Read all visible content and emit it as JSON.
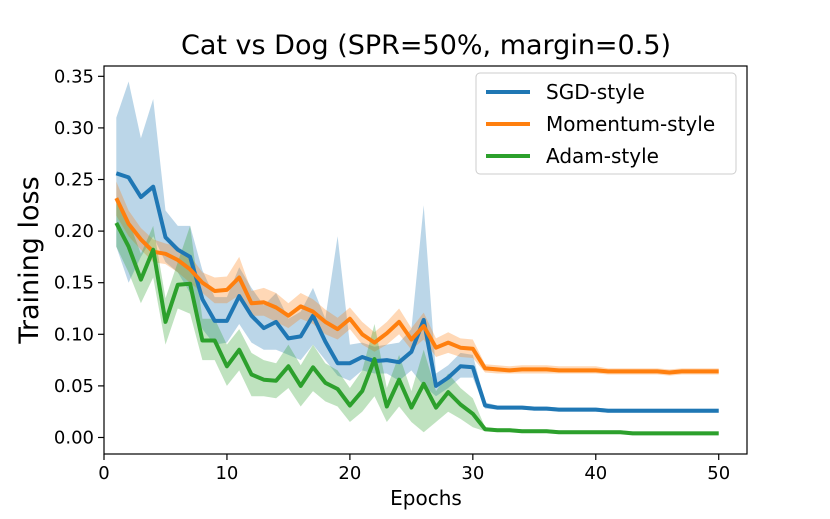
{
  "chart_data": {
    "type": "line",
    "title": "Cat vs Dog (SPR=50%, margin=0.5)",
    "xlabel": "Epochs",
    "ylabel": "Training loss",
    "xlim": [
      0,
      52.3
    ],
    "ylim": [
      -0.016,
      0.36
    ],
    "xticks": [
      0,
      10,
      20,
      30,
      40,
      50
    ],
    "yticks": [
      0.0,
      0.05,
      0.1,
      0.15,
      0.2,
      0.25,
      0.3,
      0.35
    ],
    "xtick_labels": [
      "0",
      "10",
      "20",
      "30",
      "40",
      "50"
    ],
    "ytick_labels": [
      "0.00",
      "0.05",
      "0.10",
      "0.15",
      "0.20",
      "0.25",
      "0.30",
      "0.35"
    ],
    "legend_position": "top-right",
    "grid": false,
    "x": [
      1,
      2,
      3,
      4,
      5,
      6,
      7,
      8,
      9,
      10,
      11,
      12,
      13,
      14,
      15,
      16,
      17,
      18,
      19,
      20,
      21,
      22,
      23,
      24,
      25,
      26,
      27,
      28,
      29,
      30,
      31,
      32,
      33,
      34,
      35,
      36,
      37,
      38,
      39,
      40,
      41,
      42,
      43,
      44,
      45,
      46,
      47,
      48,
      49,
      50
    ],
    "series": [
      {
        "name": "SGD-style",
        "color": "#1f77b4",
        "values": [
          0.256,
          0.252,
          0.233,
          0.243,
          0.194,
          0.182,
          0.175,
          0.134,
          0.113,
          0.113,
          0.137,
          0.118,
          0.106,
          0.112,
          0.096,
          0.098,
          0.118,
          0.093,
          0.072,
          0.072,
          0.078,
          0.074,
          0.075,
          0.073,
          0.083,
          0.114,
          0.05,
          0.058,
          0.069,
          0.068,
          0.031,
          0.029,
          0.029,
          0.029,
          0.028,
          0.028,
          0.027,
          0.027,
          0.027,
          0.027,
          0.026,
          0.026,
          0.026,
          0.026,
          0.026,
          0.026,
          0.026,
          0.026,
          0.026,
          0.026
        ],
        "lower": [
          0.185,
          0.15,
          0.175,
          0.195,
          0.17,
          0.16,
          0.14,
          0.105,
          0.09,
          0.092,
          0.11,
          0.092,
          0.085,
          0.085,
          0.08,
          0.075,
          0.09,
          0.075,
          0.06,
          0.055,
          0.065,
          0.062,
          0.062,
          0.055,
          0.065,
          0.05,
          0.04,
          0.048,
          0.058,
          0.058,
          0.028,
          0.027,
          0.027,
          0.027,
          0.026,
          0.026,
          0.025,
          0.025,
          0.025,
          0.025,
          0.024,
          0.024,
          0.024,
          0.024,
          0.024,
          0.024,
          0.024,
          0.024,
          0.024,
          0.024
        ],
        "upper": [
          0.31,
          0.345,
          0.29,
          0.328,
          0.22,
          0.205,
          0.205,
          0.162,
          0.136,
          0.136,
          0.165,
          0.145,
          0.128,
          0.14,
          0.115,
          0.122,
          0.145,
          0.115,
          0.195,
          0.09,
          0.092,
          0.088,
          0.09,
          0.092,
          0.105,
          0.225,
          0.062,
          0.07,
          0.082,
          0.08,
          0.034,
          0.031,
          0.031,
          0.031,
          0.03,
          0.03,
          0.029,
          0.029,
          0.029,
          0.029,
          0.028,
          0.028,
          0.028,
          0.028,
          0.028,
          0.028,
          0.028,
          0.028,
          0.028,
          0.028
        ]
      },
      {
        "name": "Momentum-style",
        "color": "#ff7f0e",
        "values": [
          0.232,
          0.207,
          0.192,
          0.18,
          0.178,
          0.172,
          0.163,
          0.15,
          0.142,
          0.143,
          0.155,
          0.13,
          0.131,
          0.126,
          0.118,
          0.127,
          0.122,
          0.112,
          0.105,
          0.115,
          0.1,
          0.092,
          0.101,
          0.112,
          0.095,
          0.108,
          0.087,
          0.092,
          0.087,
          0.086,
          0.067,
          0.066,
          0.065,
          0.066,
          0.066,
          0.066,
          0.065,
          0.065,
          0.065,
          0.065,
          0.064,
          0.064,
          0.064,
          0.064,
          0.064,
          0.063,
          0.064,
          0.064,
          0.064,
          0.064
        ],
        "lower": [
          0.215,
          0.195,
          0.182,
          0.17,
          0.168,
          0.16,
          0.15,
          0.14,
          0.13,
          0.13,
          0.138,
          0.118,
          0.118,
          0.112,
          0.106,
          0.115,
          0.11,
          0.1,
          0.095,
          0.105,
          0.09,
          0.083,
          0.09,
          0.1,
          0.085,
          0.095,
          0.078,
          0.082,
          0.078,
          0.077,
          0.063,
          0.062,
          0.062,
          0.062,
          0.062,
          0.062,
          0.062,
          0.062,
          0.062,
          0.062,
          0.061,
          0.061,
          0.061,
          0.061,
          0.061,
          0.06,
          0.061,
          0.061,
          0.061,
          0.061
        ],
        "upper": [
          0.248,
          0.22,
          0.203,
          0.192,
          0.188,
          0.185,
          0.176,
          0.16,
          0.155,
          0.156,
          0.175,
          0.142,
          0.145,
          0.14,
          0.13,
          0.14,
          0.134,
          0.124,
          0.116,
          0.126,
          0.112,
          0.102,
          0.112,
          0.125,
          0.106,
          0.121,
          0.096,
          0.102,
          0.096,
          0.095,
          0.071,
          0.07,
          0.069,
          0.07,
          0.07,
          0.07,
          0.069,
          0.069,
          0.069,
          0.069,
          0.067,
          0.067,
          0.067,
          0.067,
          0.067,
          0.066,
          0.067,
          0.067,
          0.067,
          0.067
        ]
      },
      {
        "name": "Adam-style",
        "color": "#2ca02c",
        "values": [
          0.208,
          0.185,
          0.153,
          0.182,
          0.112,
          0.148,
          0.149,
          0.094,
          0.094,
          0.069,
          0.085,
          0.061,
          0.056,
          0.055,
          0.069,
          0.05,
          0.068,
          0.053,
          0.047,
          0.031,
          0.045,
          0.076,
          0.03,
          0.056,
          0.029,
          0.052,
          0.029,
          0.044,
          0.032,
          0.023,
          0.008,
          0.007,
          0.007,
          0.006,
          0.006,
          0.006,
          0.005,
          0.005,
          0.005,
          0.005,
          0.005,
          0.005,
          0.004,
          0.004,
          0.004,
          0.004,
          0.004,
          0.004,
          0.004,
          0.004
        ],
        "lower": [
          0.185,
          0.16,
          0.13,
          0.155,
          0.09,
          0.125,
          0.12,
          0.075,
          0.075,
          0.05,
          0.065,
          0.04,
          0.04,
          0.038,
          0.048,
          0.03,
          0.045,
          0.035,
          0.03,
          0.015,
          0.025,
          0.04,
          0.015,
          0.03,
          0.015,
          0.005,
          0.015,
          0.025,
          0.018,
          0.01,
          0.006,
          0.006,
          0.006,
          0.005,
          0.005,
          0.005,
          0.004,
          0.004,
          0.004,
          0.004,
          0.004,
          0.004,
          0.003,
          0.003,
          0.003,
          0.003,
          0.003,
          0.003,
          0.003,
          0.003
        ],
        "upper": [
          0.23,
          0.21,
          0.178,
          0.205,
          0.135,
          0.17,
          0.205,
          0.115,
          0.115,
          0.09,
          0.105,
          0.082,
          0.075,
          0.072,
          0.09,
          0.07,
          0.09,
          0.072,
          0.065,
          0.048,
          0.065,
          0.11,
          0.048,
          0.08,
          0.045,
          0.085,
          0.045,
          0.062,
          0.048,
          0.038,
          0.01,
          0.009,
          0.009,
          0.008,
          0.008,
          0.008,
          0.007,
          0.007,
          0.007,
          0.007,
          0.007,
          0.007,
          0.006,
          0.006,
          0.006,
          0.006,
          0.006,
          0.006,
          0.006,
          0.006
        ]
      }
    ]
  }
}
